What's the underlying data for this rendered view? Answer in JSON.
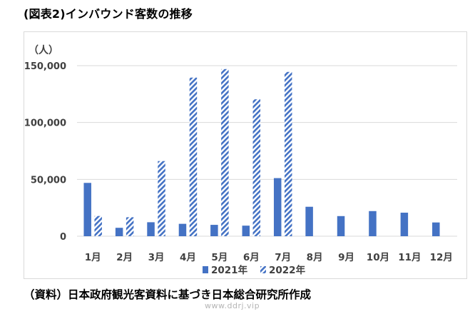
{
  "figure_title": "(図表2)インバウンド客数の推移",
  "source_note": "（資料）日本政府観光客資料に基づき日本総合研究所作成",
  "watermark": "www.ddrj.vip",
  "colors": {
    "series_2021": "#4472c4",
    "series_2022_stripe": "#4472c4",
    "gridline": "#d9d9d9",
    "axis_text": "#404040"
  },
  "chart_data": {
    "type": "bar",
    "title": "",
    "ylabel": "（人）",
    "xlabel": "",
    "categories": [
      "1月",
      "2月",
      "3月",
      "4月",
      "5月",
      "6月",
      "7月",
      "8月",
      "9月",
      "10月",
      "11月",
      "12月"
    ],
    "series": [
      {
        "name": "2021年",
        "pattern": "solid",
        "values": [
          46900,
          7400,
          12300,
          10900,
          10000,
          9300,
          51100,
          25900,
          17700,
          22100,
          20700,
          12100
        ]
      },
      {
        "name": "2022年",
        "pattern": "diagonal-stripe",
        "values": [
          17800,
          16700,
          66100,
          139500,
          147000,
          120400,
          144500,
          null,
          null,
          null,
          null,
          null
        ]
      }
    ],
    "ylim": [
      0,
      150000
    ],
    "yticks": [
      0,
      50000,
      100000,
      150000
    ],
    "ytick_labels": [
      "0",
      "50,000",
      "100,000",
      "150,000"
    ],
    "grid": true,
    "legend_position": "bottom"
  }
}
